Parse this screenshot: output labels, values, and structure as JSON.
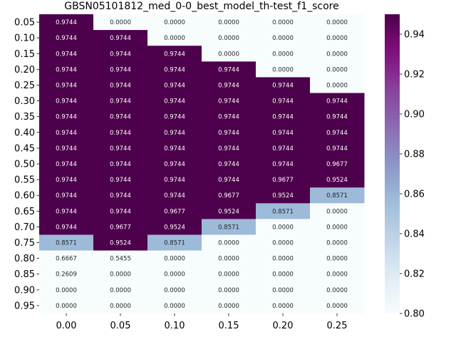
{
  "chart_data": {
    "type": "heatmap",
    "title": "GBSN05101812_med_0-0_best_model_th-test_f1_score",
    "xlabel": "",
    "ylabel": "",
    "x_categories": [
      "0.00",
      "0.05",
      "0.10",
      "0.15",
      "0.20",
      "0.25"
    ],
    "y_categories": [
      "0.05",
      "0.10",
      "0.15",
      "0.20",
      "0.25",
      "0.30",
      "0.35",
      "0.40",
      "0.45",
      "0.50",
      "0.55",
      "0.60",
      "0.65",
      "0.70",
      "0.75",
      "0.80",
      "0.85",
      "0.90",
      "0.95"
    ],
    "values": [
      [
        "0.9744",
        "0.0000",
        "0.0000",
        "0.0000",
        "0.0000",
        "0.0000"
      ],
      [
        "0.9744",
        "0.9744",
        "0.0000",
        "0.0000",
        "0.0000",
        "0.0000"
      ],
      [
        "0.9744",
        "0.9744",
        "0.9744",
        "0.0000",
        "0.0000",
        "0.0000"
      ],
      [
        "0.9744",
        "0.9744",
        "0.9744",
        "0.9744",
        "0.0000",
        "0.0000"
      ],
      [
        "0.9744",
        "0.9744",
        "0.9744",
        "0.9744",
        "0.9744",
        "0.0000"
      ],
      [
        "0.9744",
        "0.9744",
        "0.9744",
        "0.9744",
        "0.9744",
        "0.9744"
      ],
      [
        "0.9744",
        "0.9744",
        "0.9744",
        "0.9744",
        "0.9744",
        "0.9744"
      ],
      [
        "0.9744",
        "0.9744",
        "0.9744",
        "0.9744",
        "0.9744",
        "0.9744"
      ],
      [
        "0.9744",
        "0.9744",
        "0.9744",
        "0.9744",
        "0.9744",
        "0.9744"
      ],
      [
        "0.9744",
        "0.9744",
        "0.9744",
        "0.9744",
        "0.9744",
        "0.9677"
      ],
      [
        "0.9744",
        "0.9744",
        "0.9744",
        "0.9744",
        "0.9677",
        "0.9524"
      ],
      [
        "0.9744",
        "0.9744",
        "0.9744",
        "0.9677",
        "0.9524",
        "0.8571"
      ],
      [
        "0.9744",
        "0.9744",
        "0.9677",
        "0.9524",
        "0.8571",
        "0.0000"
      ],
      [
        "0.9744",
        "0.9677",
        "0.9524",
        "0.8571",
        "0.0000",
        "0.0000"
      ],
      [
        "0.8571",
        "0.9524",
        "0.8571",
        "0.0000",
        "0.0000",
        "0.0000"
      ],
      [
        "0.6667",
        "0.5455",
        "0.0000",
        "0.0000",
        "0.0000",
        "0.0000"
      ],
      [
        "0.2609",
        "0.0000",
        "0.0000",
        "0.0000",
        "0.0000",
        "0.0000"
      ],
      [
        "0.0000",
        "0.0000",
        "0.0000",
        "0.0000",
        "0.0000",
        "0.0000"
      ],
      [
        "0.0000",
        "0.0000",
        "0.0000",
        "0.0000",
        "0.0000",
        "0.0000"
      ]
    ],
    "colorbar": {
      "vmin": 0.8,
      "vmax": 0.95,
      "ticks": [
        "0.80",
        "0.82",
        "0.84",
        "0.86",
        "0.88",
        "0.90",
        "0.92",
        "0.94"
      ],
      "colormap": "BuPu"
    }
  }
}
